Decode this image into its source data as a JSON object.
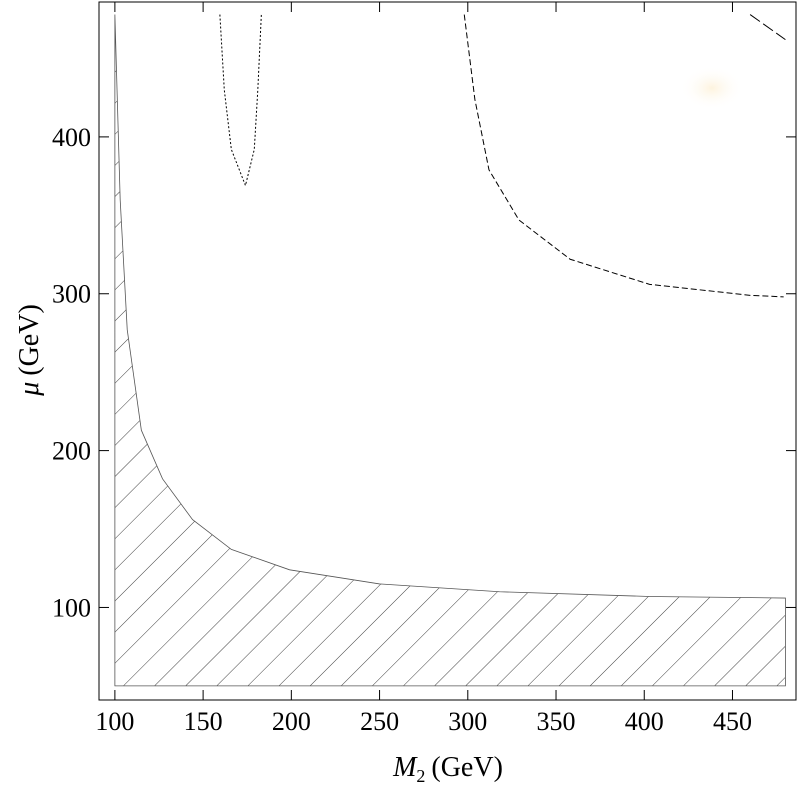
{
  "chart_data": {
    "type": "contour",
    "xlabel_var": "M",
    "xlabel_sub": "2",
    "xlabel_unit": "(GeV)",
    "ylabel_var": "μ",
    "ylabel_unit": "(GeV)",
    "xlim": [
      91,
      486
    ],
    "ylim": [
      41,
      486
    ],
    "xticks": [
      100,
      150,
      200,
      250,
      300,
      350,
      400,
      450
    ],
    "yticks": [
      100,
      200,
      300,
      400
    ],
    "series": [
      {
        "style": "hatched",
        "x": [
          100,
          103,
          107,
          115,
          127,
          144,
          166,
          199,
          250,
          318,
          403,
          480,
          480,
          100
        ],
        "y": [
          478,
          360,
          277,
          213,
          182,
          156,
          137,
          124,
          115,
          110,
          107,
          106,
          50,
          50
        ]
      },
      {
        "style": "dotted",
        "x": [
          159.5,
          162,
          166,
          174,
          179,
          181,
          183
        ],
        "y": [
          478,
          430,
          392,
          369,
          392,
          430,
          478
        ]
      },
      {
        "style": "dashed",
        "x": [
          298,
          304,
          312,
          329,
          358,
          403,
          460,
          479
        ],
        "y": [
          478,
          424,
          379,
          347,
          322,
          306,
          299,
          298
        ]
      },
      {
        "style": "longdash",
        "x": [
          460,
          480
        ],
        "y": [
          478,
          462
        ]
      }
    ]
  }
}
